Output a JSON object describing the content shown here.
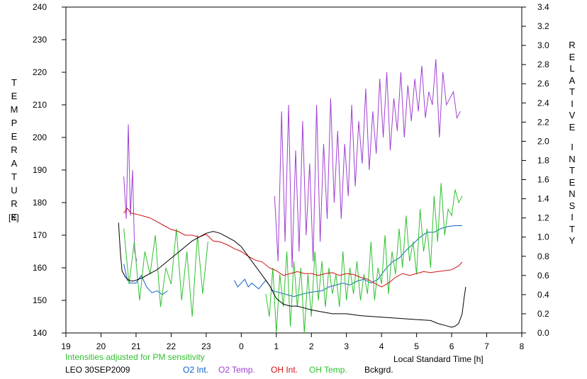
{
  "chart_data": {
    "type": "line",
    "xlabel": "Local Standard Time [h]",
    "x_ticks": [
      "19",
      "20",
      "21",
      "22",
      "23",
      "0",
      "1",
      "2",
      "3",
      "4",
      "5",
      "6",
      "7",
      "8"
    ],
    "xlim": [
      19,
      32
    ],
    "left_axis": {
      "label_letters": [
        "T",
        "E",
        "M",
        "P",
        "E",
        "R",
        "A",
        "T",
        "U",
        "R",
        "E"
      ],
      "unit": "[K]",
      "ylim": [
        140,
        240
      ],
      "ticks": [
        "140",
        "150",
        "160",
        "170",
        "180",
        "190",
        "200",
        "210",
        "220",
        "230",
        "240"
      ]
    },
    "right_axis": {
      "label_letters_1": [
        "R",
        "E",
        "L",
        "A",
        "T",
        "I",
        "V",
        "E"
      ],
      "label_letters_2": [
        "I",
        "N",
        "T",
        "E",
        "N",
        "S",
        "I",
        "T",
        "Y"
      ],
      "ylim": [
        0.0,
        3.4
      ],
      "ticks": [
        "0.0",
        "0.2",
        "0.4",
        "0.6",
        "0.8",
        "1.0",
        "1.2",
        "1.4",
        "1.6",
        "1.8",
        "2.0",
        "2.2",
        "2.4",
        "2.6",
        "2.8",
        "3.0",
        "3.2",
        "3.4"
      ]
    },
    "note": "Intensities adjusted for PM sensitivity",
    "station": "LEO 30SEP2009",
    "series": [
      {
        "name": "O2 Int.",
        "axis": "right",
        "color": "#1060d0",
        "x": [
          20.65,
          20.75,
          20.85,
          21.0,
          21.15,
          21.3,
          21.45,
          21.6,
          21.75,
          21.9,
          23.8,
          23.9,
          24.0,
          24.1,
          24.2,
          24.3,
          24.5,
          24.7,
          24.8,
          24.9,
          25.1,
          25.3,
          25.5,
          25.7,
          25.9,
          26.1,
          26.3,
          26.5,
          26.7,
          26.9,
          27.1,
          27.3,
          27.5,
          27.7,
          27.9,
          28.1,
          28.3,
          28.5,
          28.7,
          28.9,
          29.1,
          29.3,
          29.5,
          29.7,
          29.9,
          30.1,
          30.3
        ],
        "y": [
          0.72,
          0.55,
          0.52,
          0.52,
          0.6,
          0.48,
          0.42,
          0.44,
          0.4,
          0.44,
          0.55,
          0.48,
          0.52,
          0.56,
          0.48,
          0.52,
          0.46,
          0.55,
          0.5,
          0.44,
          0.42,
          0.4,
          0.38,
          0.4,
          0.42,
          0.43,
          0.44,
          0.48,
          0.5,
          0.52,
          0.5,
          0.54,
          0.56,
          0.52,
          0.56,
          0.66,
          0.74,
          0.78,
          0.86,
          0.93,
          1.0,
          1.05,
          1.05,
          1.09,
          1.11,
          1.12,
          1.12
        ]
      },
      {
        "name": "O2 Temp.",
        "axis": "left",
        "color": "#a040d0",
        "x": [
          20.65,
          20.72,
          20.78,
          20.84,
          20.9,
          20.96,
          21.02,
          24.95,
          25.05,
          25.15,
          25.25,
          25.35,
          25.45,
          25.55,
          25.65,
          25.75,
          25.85,
          25.95,
          26.05,
          26.15,
          26.25,
          26.35,
          26.45,
          26.55,
          26.65,
          26.75,
          26.85,
          26.95,
          27.05,
          27.15,
          27.25,
          27.35,
          27.45,
          27.55,
          27.65,
          27.75,
          27.85,
          27.95,
          28.05,
          28.15,
          28.25,
          28.35,
          28.45,
          28.55,
          28.65,
          28.75,
          28.85,
          28.95,
          29.05,
          29.15,
          29.25,
          29.35,
          29.45,
          29.55,
          29.65,
          29.75,
          29.85,
          29.95,
          30.05,
          30.15,
          30.25
        ],
        "y": [
          188,
          175,
          204,
          176,
          190,
          165,
          162,
          182,
          162,
          208,
          168,
          210,
          160,
          196,
          165,
          205,
          170,
          192,
          162,
          210,
          168,
          198,
          175,
          212,
          180,
          202,
          175,
          198,
          182,
          210,
          185,
          205,
          192,
          215,
          190,
          208,
          195,
          218,
          200,
          220,
          196,
          212,
          202,
          220,
          200,
          216,
          205,
          218,
          208,
          222,
          206,
          214,
          210,
          224,
          200,
          220,
          210,
          212,
          214,
          206,
          208
        ]
      },
      {
        "name": "OH Temp.",
        "axis": "left",
        "color": "#30c030",
        "x": [
          20.65,
          20.8,
          20.95,
          21.1,
          21.25,
          21.4,
          21.55,
          21.7,
          21.85,
          22.0,
          22.15,
          22.3,
          22.45,
          22.6,
          22.75,
          22.9,
          23.05,
          24.7,
          24.8,
          24.9,
          25.0,
          25.1,
          25.2,
          25.3,
          25.4,
          25.5,
          25.6,
          25.7,
          25.8,
          25.9,
          26.0,
          26.1,
          26.2,
          26.3,
          26.4,
          26.5,
          26.6,
          26.7,
          26.8,
          26.9,
          27.0,
          27.1,
          27.2,
          27.3,
          27.4,
          27.5,
          27.6,
          27.7,
          27.8,
          27.9,
          28.0,
          28.1,
          28.2,
          28.3,
          28.4,
          28.5,
          28.6,
          28.7,
          28.8,
          28.9,
          29.0,
          29.1,
          29.2,
          29.3,
          29.4,
          29.5,
          29.6,
          29.7,
          29.8,
          29.9,
          30.0,
          30.1,
          30.2,
          30.3
        ],
        "y": [
          172,
          155,
          168,
          150,
          165,
          158,
          170,
          148,
          160,
          155,
          172,
          150,
          165,
          145,
          170,
          152,
          168,
          152,
          145,
          160,
          140,
          158,
          148,
          165,
          142,
          162,
          148,
          160,
          140,
          158,
          145,
          165,
          150,
          162,
          148,
          160,
          152,
          158,
          148,
          165,
          150,
          160,
          152,
          162,
          150,
          158,
          152,
          168,
          150,
          160,
          155,
          170,
          152,
          165,
          158,
          172,
          160,
          176,
          162,
          168,
          158,
          178,
          165,
          172,
          160,
          182,
          168,
          186,
          170,
          178,
          176,
          184,
          180,
          182
        ]
      },
      {
        "name": "OH Int.",
        "axis": "right",
        "color": "#d01010",
        "x": [
          20.65,
          20.75,
          20.85,
          21.0,
          21.2,
          21.4,
          21.6,
          21.8,
          22.0,
          22.2,
          22.4,
          22.6,
          22.8,
          23.0,
          23.2,
          23.4,
          23.6,
          23.8,
          24.0,
          24.2,
          24.4,
          24.6,
          24.8,
          25.0,
          25.2,
          25.4,
          25.6,
          25.8,
          26.0,
          26.2,
          26.4,
          26.6,
          26.8,
          27.0,
          27.2,
          27.4,
          27.6,
          27.8,
          28.0,
          28.2,
          28.4,
          28.6,
          28.8,
          29.0,
          29.2,
          29.4,
          29.6,
          29.8,
          30.0,
          30.2,
          30.3
        ],
        "y": [
          1.25,
          1.3,
          1.25,
          1.24,
          1.22,
          1.2,
          1.16,
          1.12,
          1.08,
          1.06,
          1.02,
          1.02,
          1.0,
          1.03,
          0.96,
          0.95,
          0.92,
          0.88,
          0.85,
          0.8,
          0.76,
          0.74,
          0.68,
          0.65,
          0.6,
          0.62,
          0.64,
          0.62,
          0.62,
          0.6,
          0.62,
          0.63,
          0.6,
          0.62,
          0.61,
          0.58,
          0.56,
          0.52,
          0.48,
          0.52,
          0.58,
          0.62,
          0.6,
          0.62,
          0.64,
          0.63,
          0.64,
          0.65,
          0.66,
          0.7,
          0.74
        ]
      },
      {
        "name": "Bckgrd.",
        "axis": "right",
        "color": "#000000",
        "x": [
          20.5,
          20.55,
          20.6,
          20.7,
          20.8,
          20.9,
          21.0,
          21.2,
          21.4,
          21.6,
          21.8,
          22.0,
          22.2,
          22.4,
          22.6,
          22.8,
          23.0,
          23.2,
          23.4,
          23.6,
          23.8,
          24.0,
          24.2,
          24.4,
          24.6,
          24.8,
          25.0,
          25.2,
          25.4,
          25.6,
          25.8,
          26.0,
          26.3,
          26.6,
          27.0,
          27.4,
          27.8,
          28.2,
          28.6,
          29.0,
          29.4,
          29.6,
          29.8,
          30.0,
          30.1,
          30.2,
          30.3,
          30.35,
          30.4
        ],
        "y": [
          1.15,
          0.85,
          0.65,
          0.58,
          0.55,
          0.54,
          0.55,
          0.58,
          0.62,
          0.66,
          0.72,
          0.78,
          0.84,
          0.9,
          0.96,
          1.0,
          1.04,
          1.06,
          1.04,
          1.0,
          0.96,
          0.9,
          0.8,
          0.7,
          0.6,
          0.5,
          0.36,
          0.3,
          0.28,
          0.28,
          0.26,
          0.24,
          0.22,
          0.2,
          0.2,
          0.18,
          0.17,
          0.16,
          0.15,
          0.14,
          0.13,
          0.1,
          0.08,
          0.06,
          0.07,
          0.1,
          0.2,
          0.35,
          0.48
        ]
      }
    ]
  }
}
